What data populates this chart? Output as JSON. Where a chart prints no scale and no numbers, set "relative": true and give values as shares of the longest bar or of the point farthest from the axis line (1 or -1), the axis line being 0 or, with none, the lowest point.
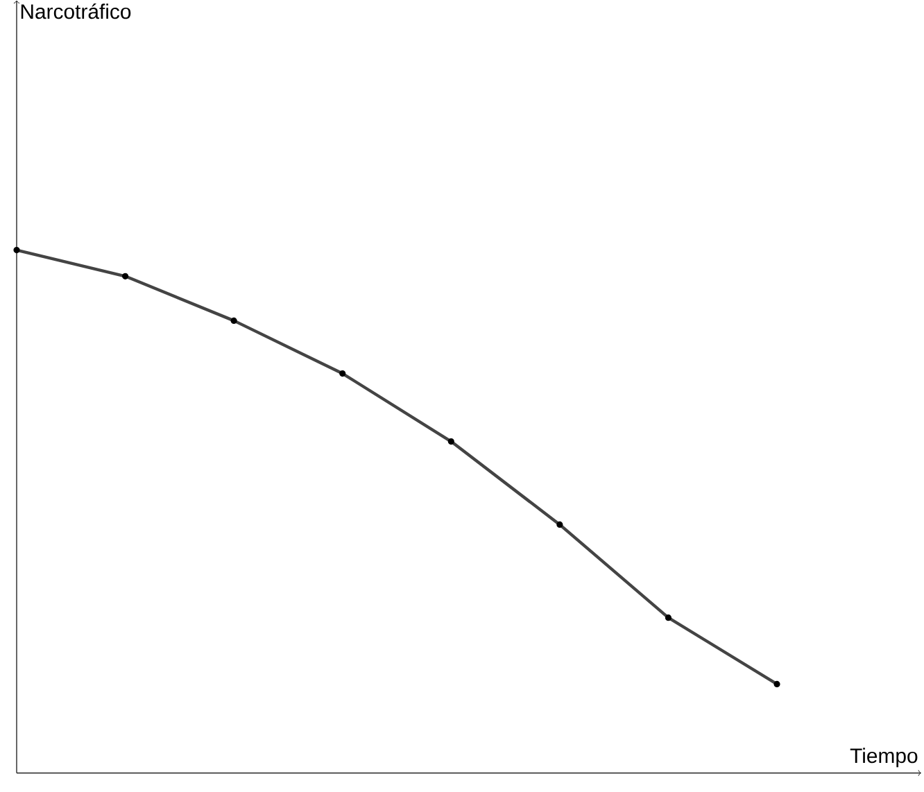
{
  "chart_data": {
    "type": "line",
    "xlabel": "Tiempo",
    "annotations": [
      "Narcotráfico"
    ],
    "relative": true,
    "categories": [
      null,
      null,
      null,
      null,
      null,
      null,
      null,
      null
    ],
    "values": [
      1,
      0.95,
      0.865,
      0.764,
      0.634,
      0.475,
      0.297,
      0.17
    ],
    "color": "#444444",
    "marker": "circle",
    "line_style": "solid"
  }
}
